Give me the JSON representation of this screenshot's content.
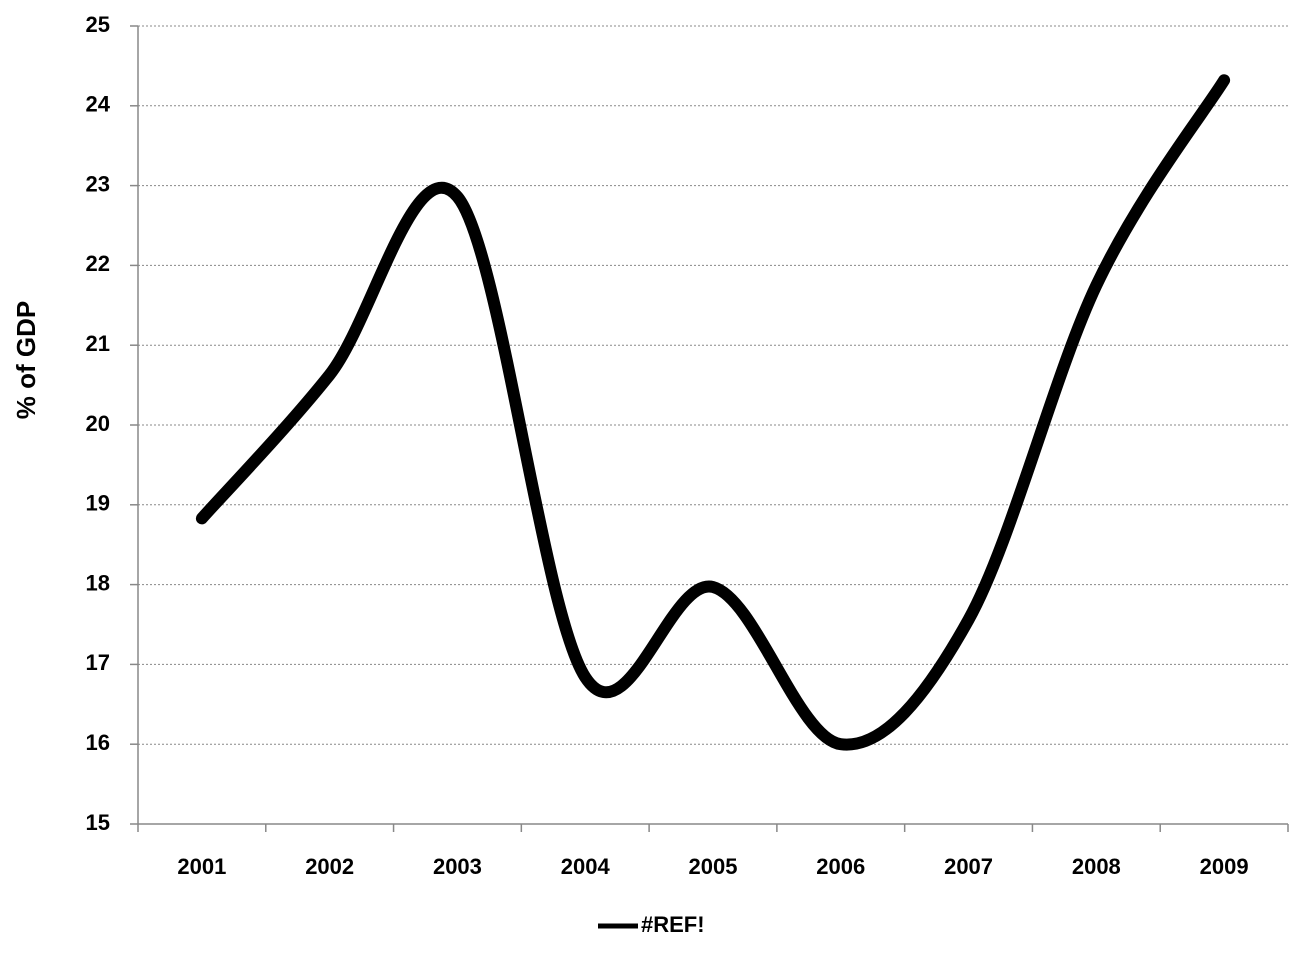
{
  "chart_data": {
    "type": "line",
    "y_label": "% of GDP",
    "categories": [
      "2001",
      "2002",
      "2003",
      "2004",
      "2005",
      "2006",
      "2007",
      "2008",
      "2009"
    ],
    "series": [
      {
        "name": "#REF!",
        "color": "#000000",
        "values": [
          18.83,
          20.63,
          22.86,
          16.84,
          17.97,
          16.0,
          17.56,
          21.75,
          24.32
        ]
      }
    ],
    "ylim": [
      15,
      25
    ],
    "yticks": [
      15,
      16,
      17,
      18,
      19,
      20,
      21,
      22,
      23,
      24,
      25
    ],
    "grid": true,
    "smooth": true,
    "legend": "bottom"
  }
}
